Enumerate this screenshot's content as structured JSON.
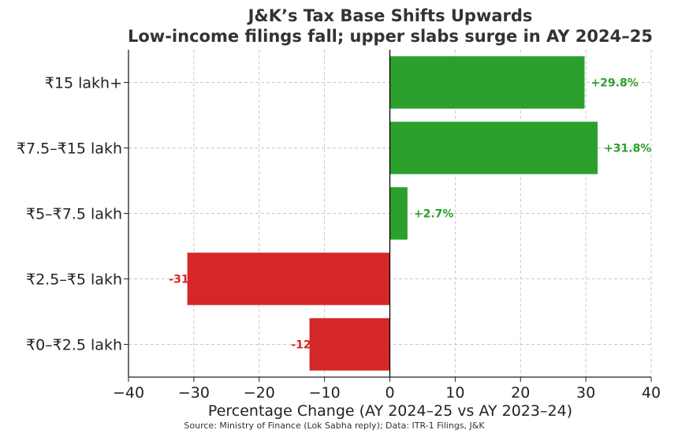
{
  "chart_data": {
    "type": "bar",
    "orientation": "horizontal",
    "title": "J&K’s Tax Base Shifts Upwards",
    "subtitle": "Low-income filings fall; upper slabs surge in AY 2024–25",
    "xlabel": "Percentage Change (AY 2024–25 vs AY 2023–24)",
    "ylabel": "",
    "xlim": [
      -40,
      40
    ],
    "xticks": [
      -40,
      -30,
      -20,
      -10,
      0,
      10,
      20,
      30,
      40
    ],
    "xtick_labels": [
      "−40",
      "−30",
      "−20",
      "−10",
      "0",
      "10",
      "20",
      "30",
      "40"
    ],
    "categories": [
      "₹0–₹2.5 lakh",
      "₹2.5–₹5 lakh",
      "₹5–₹7.5 lakh",
      "₹7.5–₹15 lakh",
      "₹15 lakh+"
    ],
    "values": [
      -12.3,
      -31,
      2.7,
      31.8,
      29.8
    ],
    "data_labels": [
      "-12",
      "-31",
      "+2.7%",
      "+31.8%",
      "+29.8%"
    ],
    "grid": true,
    "colors": {
      "positive": "#2ca02c",
      "negative": "#d62728",
      "positive_label": "#2ca02c",
      "negative_label": "#d62728"
    },
    "source_note": "Source: Ministry of Finance (Lok Sabha reply); Data: ITR-1 Filings, J&K"
  }
}
